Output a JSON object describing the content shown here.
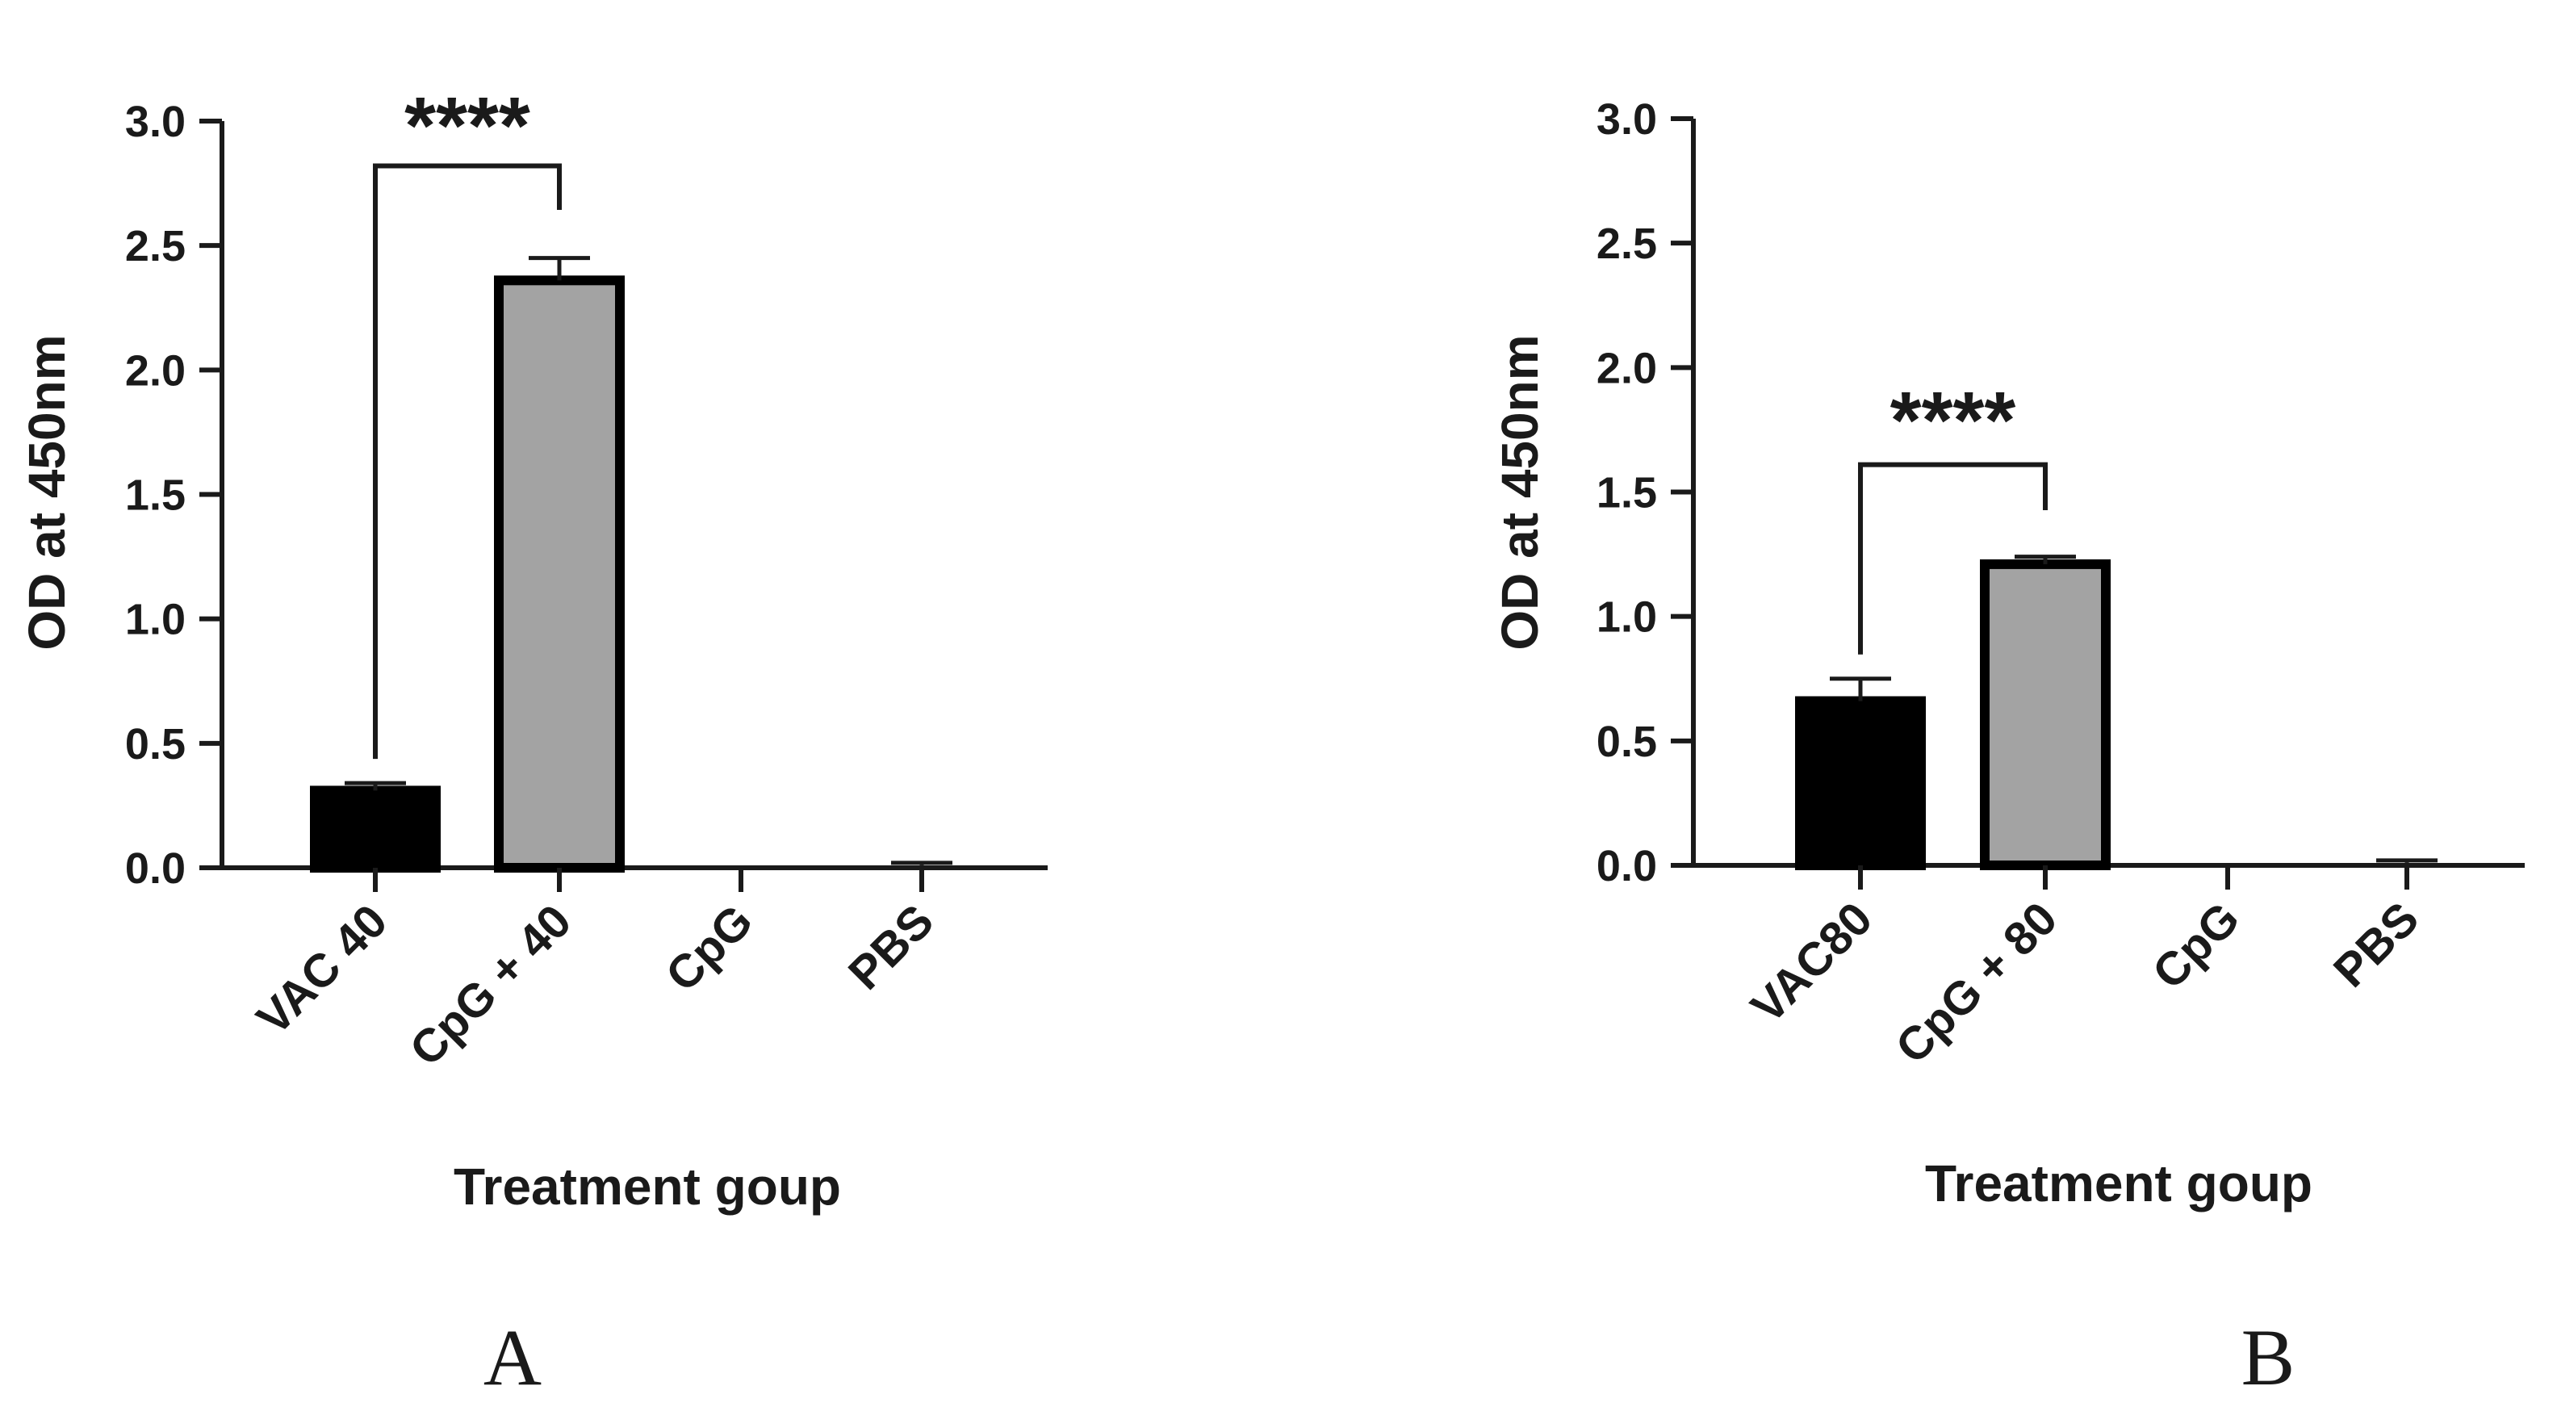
{
  "chart_data": [
    {
      "type": "bar",
      "panel_label": "A",
      "categories": [
        "VAC 40",
        "CpG + 40",
        "CpG",
        "PBS"
      ],
      "values": [
        0.31,
        2.36,
        0.0,
        0.01
      ],
      "errors": [
        0.03,
        0.09,
        0.0,
        0.01
      ],
      "bar_colors": [
        "#000000",
        "#a3a3a3",
        "#ffffff",
        "#ffffff"
      ],
      "xlabel": "Treatment goup",
      "ylabel": "OD at 450nm",
      "ylim": [
        0,
        3.0
      ],
      "yticks": [
        "0.0",
        "0.5",
        "1.0",
        "1.5",
        "2.0",
        "2.5",
        "3.0"
      ],
      "significance": {
        "from": 0,
        "to": 1,
        "label": "****",
        "level": 2.82
      }
    },
    {
      "type": "bar",
      "panel_label": "B",
      "categories": [
        "VAC80",
        "CpG + 80",
        "CpG",
        "PBS"
      ],
      "values": [
        0.66,
        1.21,
        0.0,
        0.01
      ],
      "errors": [
        0.09,
        0.03,
        0.0,
        0.01
      ],
      "bar_colors": [
        "#000000",
        "#a3a3a3",
        "#ffffff",
        "#ffffff"
      ],
      "xlabel": "Treatment goup",
      "ylabel": "OD at 450nm",
      "ylim": [
        0,
        3.0
      ],
      "yticks": [
        "0.0",
        "0.5",
        "1.0",
        "1.5",
        "2.0",
        "2.5",
        "3.0"
      ],
      "significance": {
        "from": 0,
        "to": 1,
        "label": "****",
        "level": 1.61
      }
    }
  ]
}
